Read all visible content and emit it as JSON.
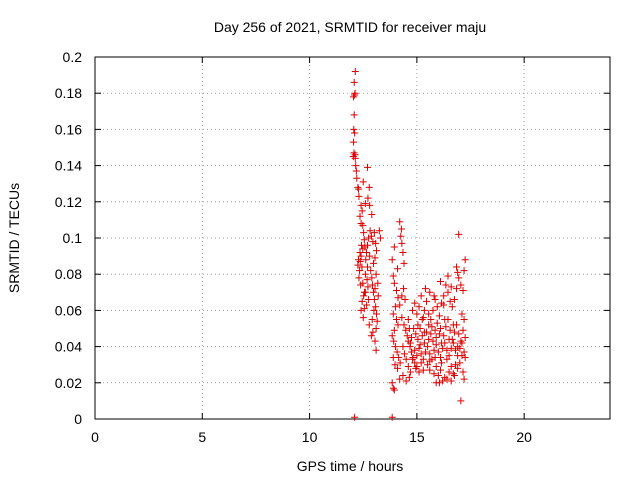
{
  "chart_data": {
    "type": "scatter",
    "title": "Day 256 of 2021, SRMTID for receiver maju",
    "xlabel": "GPS time / hours",
    "ylabel": "SRMTID / TECUs",
    "xlim": [
      0,
      24
    ],
    "ylim": [
      0,
      0.2
    ],
    "grid": true,
    "x_ticks": [
      0,
      5,
      10,
      15,
      20
    ],
    "y_ticks": [
      0,
      0.02,
      0.04,
      0.06,
      0.08,
      0.1,
      0.12,
      0.14,
      0.16,
      0.18,
      0.2
    ],
    "x_tick_labels": [
      "0",
      "5",
      "10",
      "15",
      "20"
    ],
    "y_tick_labels": [
      "0",
      "0.02",
      "0.04",
      "0.06",
      "0.08",
      "0.1",
      "0.12",
      "0.14",
      "0.16",
      "0.18",
      "0.2"
    ],
    "marker": "+",
    "color": "#dd0000",
    "series": [
      {
        "name": "SRMTID",
        "points": [
          [
            12.1,
            0.001
          ],
          [
            13.85,
            0.001
          ],
          [
            12.08,
            0.186
          ],
          [
            12.13,
            0.192
          ],
          [
            12.12,
            0.18
          ],
          [
            12.1,
            0.179
          ],
          [
            12.05,
            0.178
          ],
          [
            12.08,
            0.168
          ],
          [
            12.06,
            0.16
          ],
          [
            12.1,
            0.158
          ],
          [
            12.05,
            0.153
          ],
          [
            12.07,
            0.147
          ],
          [
            12.12,
            0.146
          ],
          [
            12.04,
            0.145
          ],
          [
            12.13,
            0.144
          ],
          [
            12.15,
            0.14
          ],
          [
            12.18,
            0.137
          ],
          [
            12.2,
            0.133
          ],
          [
            12.25,
            0.128
          ],
          [
            12.28,
            0.127
          ],
          [
            12.5,
            0.131
          ],
          [
            12.7,
            0.139
          ],
          [
            12.78,
            0.128
          ],
          [
            12.72,
            0.122
          ],
          [
            12.6,
            0.119
          ],
          [
            12.3,
            0.123
          ],
          [
            12.4,
            0.118
          ],
          [
            12.35,
            0.112
          ],
          [
            12.45,
            0.115
          ],
          [
            12.8,
            0.118
          ],
          [
            12.9,
            0.113
          ],
          [
            12.4,
            0.108
          ],
          [
            12.48,
            0.107
          ],
          [
            12.52,
            0.103
          ],
          [
            12.55,
            0.099
          ],
          [
            12.42,
            0.096
          ],
          [
            12.35,
            0.092
          ],
          [
            12.28,
            0.088
          ],
          [
            12.25,
            0.085
          ],
          [
            12.33,
            0.082
          ],
          [
            12.4,
            0.09
          ],
          [
            12.48,
            0.094
          ],
          [
            12.58,
            0.095
          ],
          [
            12.65,
            0.092
          ],
          [
            12.7,
            0.096
          ],
          [
            12.75,
            0.1
          ],
          [
            12.82,
            0.104
          ],
          [
            12.88,
            0.101
          ],
          [
            12.95,
            0.098
          ],
          [
            13.02,
            0.103
          ],
          [
            13.08,
            0.097
          ],
          [
            13.12,
            0.093
          ],
          [
            13.05,
            0.089
          ],
          [
            12.98,
            0.086
          ],
          [
            12.6,
            0.08
          ],
          [
            12.68,
            0.077
          ],
          [
            12.72,
            0.073
          ],
          [
            12.6,
            0.07
          ],
          [
            12.52,
            0.068
          ],
          [
            12.45,
            0.065
          ],
          [
            12.4,
            0.06
          ],
          [
            12.38,
            0.074
          ],
          [
            12.3,
            0.078
          ],
          [
            12.5,
            0.056
          ],
          [
            12.55,
            0.061
          ],
          [
            12.85,
            0.082
          ],
          [
            12.9,
            0.078
          ],
          [
            12.93,
            0.074
          ],
          [
            12.98,
            0.07
          ],
          [
            13.02,
            0.066
          ],
          [
            13.08,
            0.062
          ],
          [
            13.12,
            0.058
          ],
          [
            13.15,
            0.054
          ],
          [
            13.1,
            0.05
          ],
          [
            12.95,
            0.048
          ],
          [
            12.88,
            0.046
          ],
          [
            12.78,
            0.052
          ],
          [
            13.05,
            0.072
          ],
          [
            13.1,
            0.08
          ],
          [
            13.18,
            0.075
          ],
          [
            13.2,
            0.068
          ],
          [
            13.0,
            0.06
          ],
          [
            12.92,
            0.055
          ],
          [
            13.05,
            0.043
          ],
          [
            13.1,
            0.038
          ],
          [
            12.36,
            0.087
          ],
          [
            12.44,
            0.084
          ],
          [
            12.62,
            0.088
          ],
          [
            12.7,
            0.084
          ],
          [
            12.8,
            0.09
          ],
          [
            12.75,
            0.066
          ],
          [
            12.66,
            0.063
          ],
          [
            12.56,
            0.07
          ],
          [
            12.48,
            0.075
          ],
          [
            13.3,
            0.1
          ],
          [
            13.25,
            0.104
          ],
          [
            13.95,
            0.095
          ],
          [
            13.85,
            0.088
          ],
          [
            14.2,
            0.109
          ],
          [
            14.28,
            0.105
          ],
          [
            14.25,
            0.101
          ],
          [
            14.3,
            0.097
          ],
          [
            14.35,
            0.092
          ],
          [
            14.4,
            0.086
          ],
          [
            14.1,
            0.083
          ],
          [
            13.9,
            0.079
          ],
          [
            13.95,
            0.075
          ],
          [
            14.05,
            0.071
          ],
          [
            14.12,
            0.067
          ],
          [
            14.2,
            0.063
          ],
          [
            14.3,
            0.068
          ],
          [
            14.38,
            0.072
          ],
          [
            14.45,
            0.066
          ],
          [
            14.0,
            0.062
          ],
          [
            13.9,
            0.058
          ],
          [
            14.05,
            0.055
          ],
          [
            14.12,
            0.052
          ],
          [
            13.95,
            0.049
          ],
          [
            13.85,
            0.046
          ],
          [
            13.92,
            0.043
          ],
          [
            14.0,
            0.04
          ],
          [
            14.08,
            0.037
          ],
          [
            14.15,
            0.034
          ],
          [
            14.22,
            0.031
          ],
          [
            13.98,
            0.03
          ],
          [
            13.9,
            0.034
          ],
          [
            14.1,
            0.028
          ],
          [
            14.3,
            0.056
          ],
          [
            14.4,
            0.052
          ],
          [
            14.48,
            0.049
          ],
          [
            14.55,
            0.046
          ],
          [
            14.6,
            0.043
          ],
          [
            14.68,
            0.04
          ],
          [
            14.75,
            0.037
          ],
          [
            14.82,
            0.034
          ],
          [
            14.9,
            0.031
          ],
          [
            14.95,
            0.028
          ],
          [
            14.7,
            0.026
          ],
          [
            14.6,
            0.029
          ],
          [
            14.5,
            0.033
          ],
          [
            14.42,
            0.036
          ],
          [
            14.35,
            0.04
          ],
          [
            13.85,
            0.02
          ],
          [
            13.9,
            0.017
          ],
          [
            13.95,
            0.016
          ],
          [
            14.2,
            0.022
          ],
          [
            14.35,
            0.024
          ],
          [
            14.5,
            0.021
          ],
          [
            14.65,
            0.023
          ],
          [
            14.8,
            0.06
          ],
          [
            14.9,
            0.064
          ],
          [
            15.0,
            0.058
          ],
          [
            15.1,
            0.062
          ],
          [
            15.2,
            0.068
          ],
          [
            15.25,
            0.055
          ],
          [
            15.35,
            0.06
          ],
          [
            15.45,
            0.065
          ],
          [
            15.55,
            0.058
          ],
          [
            15.65,
            0.055
          ],
          [
            15.75,
            0.06
          ],
          [
            15.85,
            0.066
          ],
          [
            15.95,
            0.062
          ],
          [
            16.05,
            0.057
          ],
          [
            16.15,
            0.064
          ],
          [
            16.25,
            0.068
          ],
          [
            16.35,
            0.074
          ],
          [
            16.45,
            0.07
          ],
          [
            16.55,
            0.065
          ],
          [
            16.65,
            0.062
          ],
          [
            16.75,
            0.066
          ],
          [
            16.85,
            0.072
          ],
          [
            16.95,
            0.078
          ],
          [
            17.05,
            0.074
          ],
          [
            17.15,
            0.071
          ],
          [
            17.2,
            0.082
          ],
          [
            17.25,
            0.088
          ],
          [
            16.85,
            0.084
          ],
          [
            16.9,
            0.081
          ],
          [
            16.1,
            0.076
          ],
          [
            16.25,
            0.063
          ],
          [
            16.45,
            0.079
          ],
          [
            16.6,
            0.073
          ],
          [
            14.85,
            0.05
          ],
          [
            14.95,
            0.047
          ],
          [
            15.05,
            0.044
          ],
          [
            15.15,
            0.05
          ],
          [
            15.25,
            0.046
          ],
          [
            15.35,
            0.042
          ],
          [
            15.45,
            0.048
          ],
          [
            15.55,
            0.052
          ],
          [
            15.65,
            0.047
          ],
          [
            15.75,
            0.043
          ],
          [
            15.85,
            0.049
          ],
          [
            15.95,
            0.053
          ],
          [
            16.05,
            0.047
          ],
          [
            16.15,
            0.042
          ],
          [
            16.25,
            0.046
          ],
          [
            16.35,
            0.051
          ],
          [
            16.45,
            0.055
          ],
          [
            16.55,
            0.049
          ],
          [
            16.65,
            0.044
          ],
          [
            16.75,
            0.048
          ],
          [
            16.85,
            0.052
          ],
          [
            16.95,
            0.047
          ],
          [
            17.05,
            0.043
          ],
          [
            17.15,
            0.049
          ],
          [
            17.2,
            0.055
          ],
          [
            14.9,
            0.038
          ],
          [
            15.0,
            0.035
          ],
          [
            15.1,
            0.039
          ],
          [
            15.2,
            0.036
          ],
          [
            15.3,
            0.033
          ],
          [
            15.4,
            0.037
          ],
          [
            15.5,
            0.04
          ],
          [
            15.6,
            0.036
          ],
          [
            15.7,
            0.033
          ],
          [
            15.8,
            0.038
          ],
          [
            15.9,
            0.041
          ],
          [
            16.0,
            0.037
          ],
          [
            16.1,
            0.034
          ],
          [
            16.2,
            0.039
          ],
          [
            16.3,
            0.042
          ],
          [
            16.4,
            0.038
          ],
          [
            16.5,
            0.035
          ],
          [
            16.6,
            0.039
          ],
          [
            16.7,
            0.042
          ],
          [
            16.8,
            0.038
          ],
          [
            16.9,
            0.035
          ],
          [
            17.0,
            0.039
          ],
          [
            17.1,
            0.042
          ],
          [
            17.2,
            0.037
          ],
          [
            15.0,
            0.029
          ],
          [
            15.1,
            0.026
          ],
          [
            15.2,
            0.031
          ],
          [
            15.3,
            0.027
          ],
          [
            15.5,
            0.03
          ],
          [
            15.6,
            0.027
          ],
          [
            15.8,
            0.025
          ],
          [
            15.9,
            0.029
          ],
          [
            16.0,
            0.024
          ],
          [
            16.1,
            0.027
          ],
          [
            16.3,
            0.023
          ],
          [
            16.5,
            0.026
          ],
          [
            16.6,
            0.029
          ],
          [
            16.7,
            0.025
          ],
          [
            16.9,
            0.028
          ],
          [
            17.0,
            0.031
          ],
          [
            17.15,
            0.026
          ],
          [
            17.2,
            0.022
          ],
          [
            15.9,
            0.02
          ],
          [
            16.05,
            0.02
          ],
          [
            16.2,
            0.021
          ],
          [
            16.4,
            0.022
          ],
          [
            16.6,
            0.021
          ],
          [
            16.75,
            0.024
          ],
          [
            17.05,
            0.01
          ],
          [
            16.95,
            0.102
          ],
          [
            15.4,
            0.072
          ],
          [
            15.6,
            0.07
          ],
          [
            15.8,
            0.068
          ],
          [
            15.05,
            0.052
          ],
          [
            15.3,
            0.056
          ],
          [
            15.55,
            0.044
          ],
          [
            15.7,
            0.051
          ],
          [
            15.9,
            0.045
          ],
          [
            16.1,
            0.05
          ],
          [
            16.3,
            0.055
          ],
          [
            16.5,
            0.044
          ],
          [
            16.7,
            0.052
          ],
          [
            16.9,
            0.04
          ],
          [
            17.1,
            0.058
          ],
          [
            17.25,
            0.045
          ],
          [
            17.25,
            0.034
          ],
          [
            14.75,
            0.045
          ],
          [
            14.65,
            0.05
          ],
          [
            14.6,
            0.055
          ],
          [
            14.7,
            0.042
          ],
          [
            14.8,
            0.033
          ],
          [
            15.15,
            0.041
          ],
          [
            15.35,
            0.048
          ],
          [
            15.6,
            0.032
          ],
          [
            15.85,
            0.034
          ],
          [
            16.15,
            0.031
          ],
          [
            16.4,
            0.033
          ],
          [
            16.8,
            0.03
          ],
          [
            17.1,
            0.035
          ]
        ]
      }
    ]
  }
}
